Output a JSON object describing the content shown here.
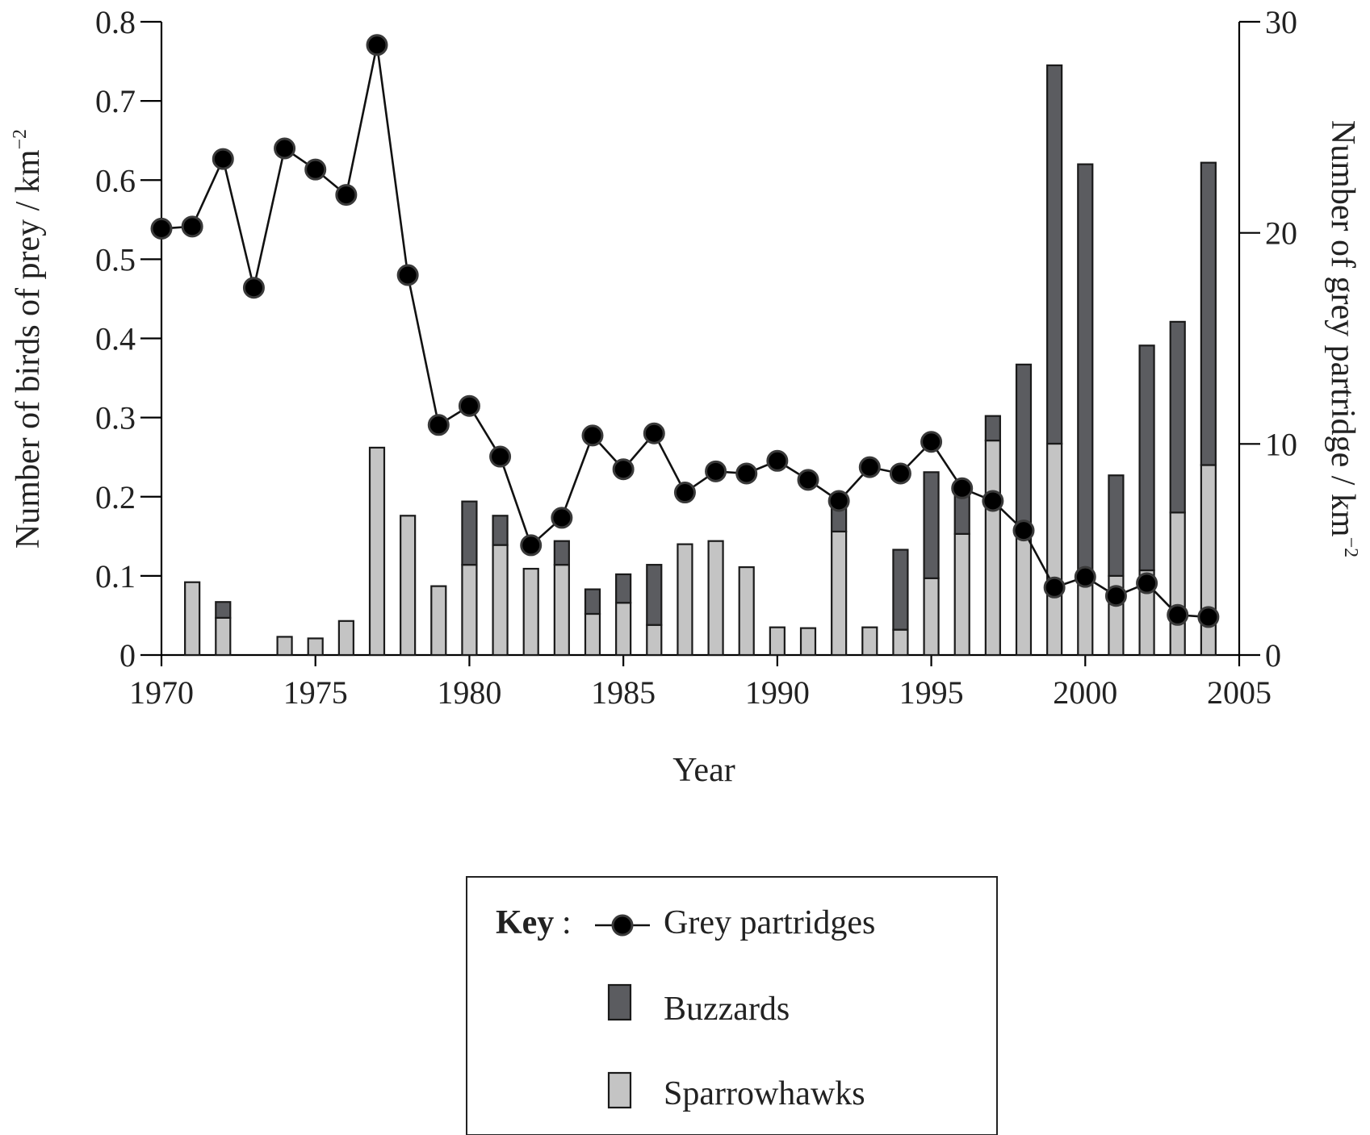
{
  "chart_data": {
    "type": "bar+line",
    "xlabel": "Year",
    "ylabel_left": "Number of birds of prey / km",
    "ylabel_left_sup": "−2",
    "ylabel_right": "Number of grey partridge / km",
    "ylabel_right_sup": "−2",
    "xlim": [
      1970,
      2005
    ],
    "ylim_left": [
      0,
      0.8
    ],
    "ylim_right": [
      0,
      30
    ],
    "x_ticks": [
      "1970",
      "1975",
      "1980",
      "1985",
      "1990",
      "1995",
      "2000",
      "2005"
    ],
    "y_left_ticks": [
      "0",
      "0.1",
      "0.2",
      "0.3",
      "0.4",
      "0.5",
      "0.6",
      "0.7",
      "0.8"
    ],
    "y_right_ticks": [
      "0",
      "10",
      "20",
      "30"
    ],
    "bar_years": [
      1971,
      1972,
      1974,
      1975,
      1976,
      1977,
      1978,
      1979,
      1980,
      1981,
      1982,
      1983,
      1984,
      1985,
      1986,
      1987,
      1988,
      1989,
      1990,
      1991,
      1992,
      1993,
      1994,
      1995,
      1996,
      1997,
      1998,
      1999,
      2000,
      2001,
      2002,
      2003,
      2004
    ],
    "series": [
      {
        "name": "Sparrowhawks",
        "axis": "left",
        "values": [
          0.092,
          0.047,
          0.023,
          0.021,
          0.043,
          0.262,
          0.176,
          0.087,
          0.114,
          0.139,
          0.109,
          0.114,
          0.052,
          0.066,
          0.038,
          0.14,
          0.144,
          0.111,
          0.035,
          0.034,
          0.156,
          0.035,
          0.032,
          0.097,
          0.153,
          0.271,
          0.151,
          0.267,
          0.1,
          0.1,
          0.107,
          0.18,
          0.24
        ]
      },
      {
        "name": "Buzzards",
        "axis": "left",
        "values": [
          0,
          0.02,
          0,
          0,
          0,
          0,
          0,
          0,
          0.08,
          0.037,
          0,
          0.03,
          0.031,
          0.036,
          0.076,
          0,
          0,
          0,
          0,
          0,
          0.047,
          0,
          0.101,
          0.134,
          0.064,
          0.031,
          0.216,
          0.478,
          0.52,
          0.127,
          0.284,
          0.241,
          0.382
        ]
      },
      {
        "name": "Grey partridges",
        "axis": "right",
        "x": [
          1970,
          1971,
          1972,
          1973,
          1974,
          1975,
          1976,
          1977,
          1978,
          1979,
          1980,
          1981,
          1982,
          1983,
          1984,
          1985,
          1986,
          1987,
          1988,
          1989,
          1990,
          1991,
          1992,
          1993,
          1994,
          1995,
          1996,
          1997,
          1998,
          1999,
          2000,
          2001,
          2002,
          2003,
          2004
        ],
        "values": [
          20.2,
          20.3,
          23.5,
          17.4,
          24.0,
          23.0,
          21.8,
          28.9,
          18.0,
          10.9,
          11.8,
          9.4,
          5.2,
          6.5,
          10.4,
          8.8,
          10.5,
          7.7,
          8.7,
          8.6,
          9.2,
          8.3,
          7.3,
          8.9,
          8.6,
          10.1,
          7.9,
          7.3,
          5.9,
          3.2,
          3.7,
          2.8,
          3.4,
          1.9,
          1.8
        ]
      }
    ],
    "legend": {
      "title": "Key",
      "items": [
        "Grey partridges",
        "Buzzards",
        "Sparrowhawks"
      ]
    },
    "grid": false
  }
}
